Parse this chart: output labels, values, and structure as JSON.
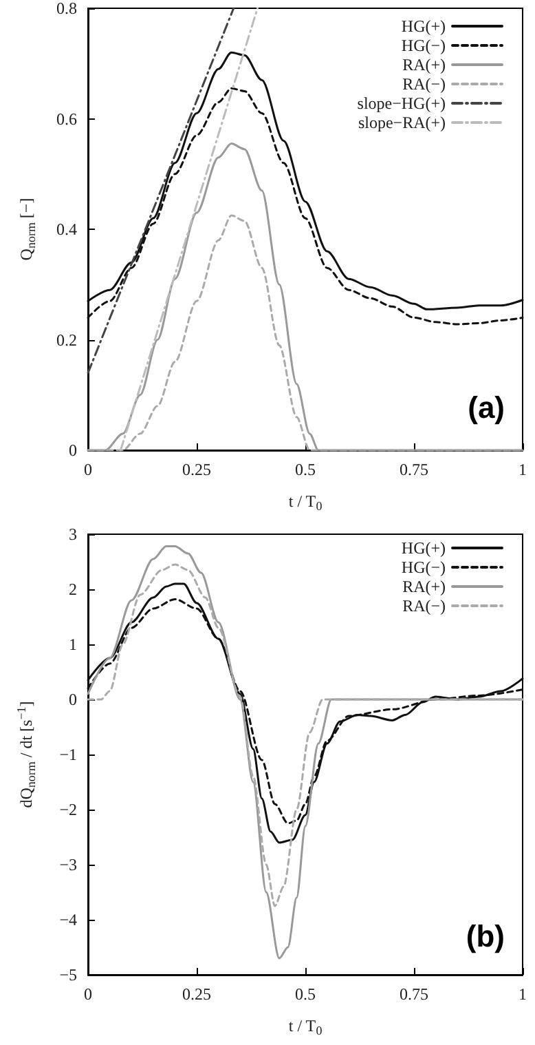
{
  "chart_data": [
    {
      "type": "line",
      "xlabel": "t / T$_{0}$",
      "ylabel": "Q$_{norm}$ [−]",
      "annotations": [
        "(a)"
      ],
      "xlim": [
        0,
        1
      ],
      "xticks": [
        0,
        0.25,
        0.5,
        0.75,
        1
      ],
      "ylim": [
        0,
        0.8
      ],
      "yticks": [
        0,
        0.2,
        0.4,
        0.6,
        0.8
      ],
      "legend": "top right",
      "grid": false,
      "marker": "none",
      "series": [
        {
          "name": "HG(+)",
          "color": "#111111",
          "line_style": "solid",
          "x": [
            0,
            0.05,
            0.1,
            0.15,
            0.2,
            0.25,
            0.3,
            0.33,
            0.36,
            0.4,
            0.45,
            0.5,
            0.55,
            0.6,
            0.65,
            0.7,
            0.75,
            0.78,
            0.85,
            0.9,
            0.95,
            1
          ],
          "values": [
            0.27,
            0.29,
            0.34,
            0.42,
            0.52,
            0.61,
            0.69,
            0.72,
            0.715,
            0.67,
            0.56,
            0.45,
            0.36,
            0.31,
            0.295,
            0.28,
            0.265,
            0.255,
            0.258,
            0.262,
            0.262,
            0.272
          ]
        },
        {
          "name": "HG(−)",
          "color": "#111111",
          "line_style": "dashed",
          "x": [
            0,
            0.05,
            0.1,
            0.15,
            0.2,
            0.25,
            0.3,
            0.33,
            0.36,
            0.4,
            0.45,
            0.5,
            0.55,
            0.6,
            0.65,
            0.7,
            0.75,
            0.8,
            0.85,
            0.9,
            0.95,
            1
          ],
          "values": [
            0.24,
            0.27,
            0.33,
            0.41,
            0.5,
            0.57,
            0.63,
            0.655,
            0.65,
            0.61,
            0.52,
            0.42,
            0.33,
            0.29,
            0.275,
            0.26,
            0.24,
            0.232,
            0.228,
            0.23,
            0.235,
            0.24
          ]
        },
        {
          "name": "RA(+)",
          "color": "#999999",
          "line_style": "solid",
          "x": [
            0,
            0.04,
            0.08,
            0.12,
            0.16,
            0.2,
            0.25,
            0.3,
            0.33,
            0.36,
            0.4,
            0.44,
            0.48,
            0.51,
            0.53,
            1
          ],
          "values": [
            0,
            0,
            0.03,
            0.1,
            0.2,
            0.31,
            0.43,
            0.53,
            0.555,
            0.545,
            0.47,
            0.3,
            0.12,
            0.03,
            0,
            0
          ]
        },
        {
          "name": "RA(−)",
          "color": "#aaaaaa",
          "line_style": "dashed",
          "x": [
            0,
            0.08,
            0.12,
            0.16,
            0.2,
            0.25,
            0.3,
            0.33,
            0.36,
            0.4,
            0.44,
            0.48,
            0.51,
            1
          ],
          "values": [
            0,
            0,
            0.03,
            0.08,
            0.16,
            0.27,
            0.38,
            0.425,
            0.415,
            0.33,
            0.19,
            0.06,
            0,
            0
          ]
        },
        {
          "name": "slope−HG(+)",
          "color": "#444444",
          "line_style": "dashdot",
          "x": [
            0,
            0.335
          ],
          "values": [
            0.14,
            0.8
          ]
        },
        {
          "name": "slope−RA(+)",
          "color": "#bbbbbb",
          "line_style": "dashdot",
          "x": [
            0.075,
            0.39
          ],
          "values": [
            0,
            0.8
          ]
        }
      ]
    },
    {
      "type": "line",
      "xlabel": "t / T$_{0}$",
      "ylabel": "dQ$_{norm}$ / dt [s$^{−1}$]",
      "annotations": [
        "(b)"
      ],
      "xlim": [
        0,
        1
      ],
      "xticks": [
        0,
        0.25,
        0.5,
        0.75,
        1
      ],
      "ylim": [
        -5,
        3
      ],
      "yticks": [
        {
          "value": -5,
          "label": "−5"
        },
        {
          "value": -4,
          "label": "−4"
        },
        {
          "value": -3,
          "label": "−3"
        },
        {
          "value": -2,
          "label": "−2"
        },
        {
          "value": -1,
          "label": "−1"
        },
        0,
        1,
        2,
        3
      ],
      "legend": "top right",
      "grid": false,
      "marker": "none",
      "series": [
        {
          "name": "HG(+)",
          "color": "#111111",
          "line_style": "solid",
          "x": [
            0,
            0.05,
            0.1,
            0.15,
            0.18,
            0.2,
            0.22,
            0.25,
            0.3,
            0.35,
            0.38,
            0.4,
            0.42,
            0.44,
            0.47,
            0.5,
            0.52,
            0.55,
            0.58,
            0.62,
            0.65,
            0.7,
            0.73,
            0.77,
            0.8,
            0.85,
            0.9,
            0.95,
            1
          ],
          "values": [
            0.35,
            0.75,
            1.4,
            1.85,
            2.05,
            2.1,
            2.1,
            1.75,
            1.1,
            0.1,
            -0.9,
            -1.8,
            -2.4,
            -2.6,
            -2.55,
            -2.1,
            -1.5,
            -0.8,
            -0.4,
            -0.28,
            -0.3,
            -0.38,
            -0.28,
            -0.05,
            0.05,
            0,
            0.05,
            0.15,
            0.38
          ]
        },
        {
          "name": "HG(−)",
          "color": "#111111",
          "line_style": "dashed",
          "x": [
            0,
            0.05,
            0.1,
            0.15,
            0.2,
            0.25,
            0.3,
            0.35,
            0.4,
            0.43,
            0.46,
            0.48,
            0.5,
            0.52,
            0.55,
            0.6,
            0.7,
            0.8,
            0.9,
            1
          ],
          "values": [
            0.2,
            0.65,
            1.3,
            1.65,
            1.82,
            1.65,
            1.1,
            0.15,
            -1.1,
            -1.9,
            -2.25,
            -2.2,
            -1.9,
            -1.4,
            -0.75,
            -0.3,
            -0.18,
            0,
            0.07,
            0.18
          ]
        },
        {
          "name": "RA(+)",
          "color": "#999999",
          "line_style": "solid",
          "x": [
            0,
            0.05,
            0.1,
            0.15,
            0.18,
            0.2,
            0.23,
            0.26,
            0.3,
            0.35,
            0.38,
            0.41,
            0.44,
            0.46,
            0.48,
            0.5,
            0.53,
            0.56,
            1
          ],
          "values": [
            0.1,
            0.75,
            1.8,
            2.55,
            2.78,
            2.78,
            2.65,
            2.3,
            1.4,
            0,
            -1.5,
            -3.5,
            -4.7,
            -4.5,
            -3.6,
            -2.3,
            -0.8,
            0,
            0
          ]
        },
        {
          "name": "RA(−)",
          "color": "#aaaaaa",
          "line_style": "dashed",
          "x": [
            0,
            0.03,
            0.05,
            0.08,
            0.12,
            0.17,
            0.2,
            0.23,
            0.27,
            0.3,
            0.35,
            0.38,
            0.41,
            0.43,
            0.45,
            0.48,
            0.51,
            0.54,
            1
          ],
          "values": [
            0,
            0,
            0.15,
            1,
            1.9,
            2.35,
            2.45,
            2.35,
            1.85,
            1.3,
            0.05,
            -1.4,
            -3,
            -3.75,
            -3.4,
            -2,
            -0.6,
            0,
            0
          ]
        }
      ]
    }
  ]
}
